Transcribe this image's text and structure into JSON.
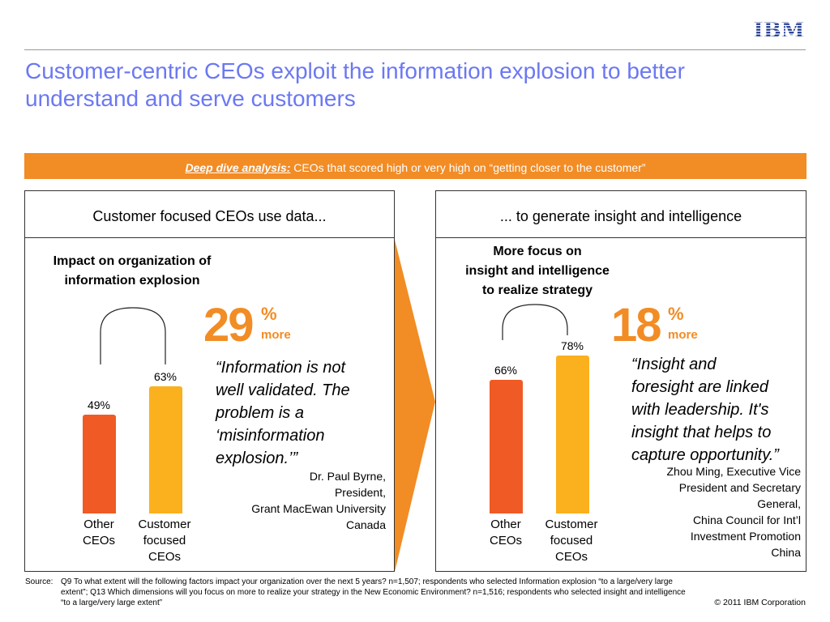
{
  "logo": {
    "text": "IBM",
    "color": "#1f3a93"
  },
  "title": "Customer-centric CEOs exploit the information explosion to better understand and serve customers",
  "banner": {
    "lead": "Deep dive analysis:",
    "text": " CEOs that scored high or very high on “getting closer to the customer”"
  },
  "left": {
    "header": "Customer focused CEOs use data...",
    "subtitle_line1": "Impact on organization of",
    "subtitle_line2": "information explosion",
    "big_number": "29",
    "big_pct": "%",
    "big_more": "more",
    "quote_lines": [
      "“Information is not",
      "well validated. The",
      "problem is a",
      "‘misinformation",
      "explosion.’”"
    ],
    "attrib_lines": [
      "Dr. Paul Byrne,",
      "President,",
      "Grant MacEwan University",
      "Canada"
    ]
  },
  "right": {
    "header": "... to generate insight and intelligence",
    "subtitle_line1": "More focus on",
    "subtitle_line2": "insight and intelligence",
    "subtitle_line3": "to realize strategy",
    "big_number": "18",
    "big_pct": "%",
    "big_more": "more",
    "quote_lines": [
      "“Insight and",
      "foresight are linked",
      "with leadership. It's",
      "insight that helps to",
      "capture opportunity.”"
    ],
    "attrib_lines": [
      "Zhou Ming, Executive Vice",
      "President and Secretary",
      "General,",
      "China Council for Int’l",
      "Investment Promotion",
      "China"
    ]
  },
  "chart_data": [
    {
      "type": "bar",
      "categories": [
        "Other CEOs",
        "Customer focused CEOs"
      ],
      "values": [
        49,
        63
      ],
      "value_labels": [
        "49%",
        "63%"
      ],
      "title": "Impact on organization of information explosion",
      "ylim": [
        0,
        100
      ],
      "colors": [
        "#f05a24",
        "#fbb01e"
      ]
    },
    {
      "type": "bar",
      "categories": [
        "Other CEOs",
        "Customer focused CEOs"
      ],
      "values": [
        66,
        78
      ],
      "value_labels": [
        "66%",
        "78%"
      ],
      "title": "More focus on insight and intelligence to realize strategy",
      "ylim": [
        0,
        100
      ],
      "colors": [
        "#f05a24",
        "#fbb01e"
      ]
    }
  ],
  "axis_labels": {
    "other_line1": "Other",
    "other_line2": "CEOs",
    "cust_line1": "Customer",
    "cust_line2": "focused",
    "cust_line3": "CEOs"
  },
  "source": {
    "label": "Source:",
    "line1": "Q9  To what extent will the following factors impact your organization over the next 5 years? n=1,507; respondents who selected Information explosion “to a large/very large",
    "line2": "extent”; Q13  Which dimensions will you focus on more to realize your strategy in the New Economic Environment? n=1,516; respondents who selected insight and intelligence",
    "line3": "“to a large/very large extent”"
  },
  "copyright": "© 2011 IBM Corporation",
  "colors": {
    "title": "#6b78f2",
    "accent": "#f28c25",
    "bar_other": "#f05a24",
    "bar_customer": "#fbb01e"
  }
}
